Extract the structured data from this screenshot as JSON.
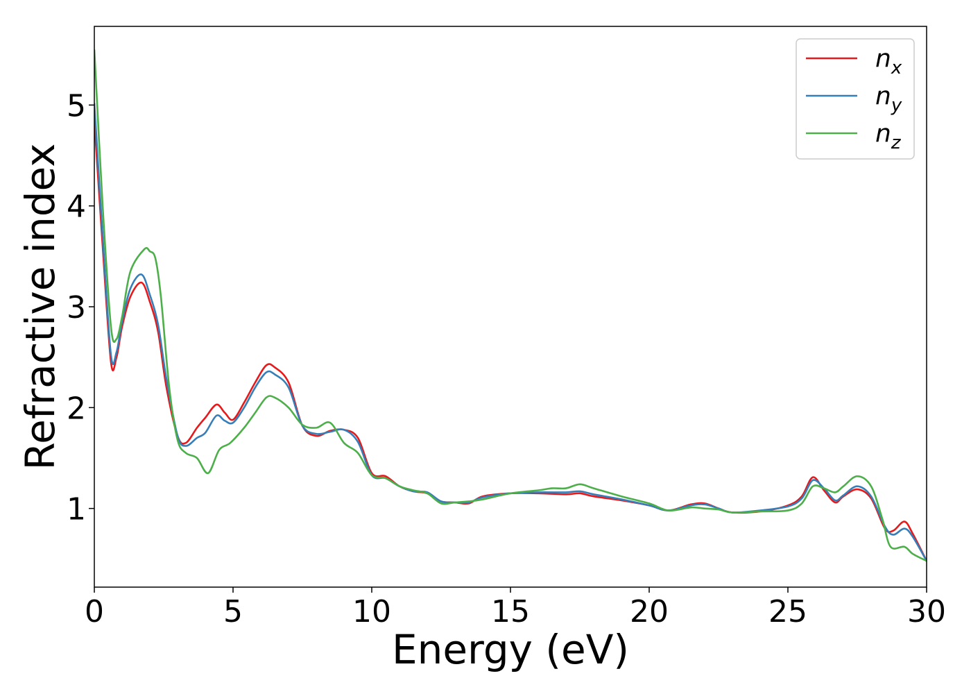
{
  "chart_data": {
    "type": "line",
    "xlabel": "Energy (eV)",
    "ylabel": "Refractive index",
    "xlim": [
      0,
      30
    ],
    "ylim": [
      0.22,
      5.78
    ],
    "xticks": [
      0,
      5,
      10,
      15,
      20,
      25,
      30
    ],
    "yticks": [
      1,
      2,
      3,
      4,
      5
    ],
    "grid": false,
    "legend_position": "top-right",
    "series": [
      {
        "name": "n_x",
        "label_base": "n",
        "label_sub": "x",
        "color": "#e41a1c",
        "x": [
          0,
          0.3,
          0.6,
          0.8,
          1.0,
          1.3,
          1.7,
          2.0,
          2.3,
          2.6,
          3.0,
          3.3,
          3.7,
          4.0,
          4.4,
          4.7,
          5.0,
          5.4,
          5.8,
          6.2,
          6.5,
          7.0,
          7.5,
          8.0,
          8.5,
          9.0,
          9.5,
          10.0,
          10.5,
          11.0,
          11.5,
          12.0,
          12.5,
          13.0,
          13.5,
          14.0,
          15.0,
          16.0,
          17.0,
          17.5,
          18.0,
          19.0,
          20.0,
          20.7,
          21.5,
          22.0,
          22.5,
          23.0,
          24.0,
          25.0,
          25.5,
          25.9,
          26.3,
          26.7,
          27.0,
          27.5,
          28.0,
          28.5,
          28.8,
          29.2,
          29.5,
          30.0
        ],
        "y": [
          4.85,
          3.6,
          2.45,
          2.5,
          2.8,
          3.1,
          3.24,
          3.05,
          2.75,
          2.2,
          1.72,
          1.65,
          1.8,
          1.9,
          2.03,
          1.95,
          1.88,
          2.05,
          2.25,
          2.42,
          2.4,
          2.25,
          1.82,
          1.72,
          1.77,
          1.78,
          1.7,
          1.35,
          1.32,
          1.22,
          1.17,
          1.15,
          1.07,
          1.06,
          1.05,
          1.12,
          1.15,
          1.15,
          1.14,
          1.15,
          1.12,
          1.08,
          1.03,
          0.98,
          1.04,
          1.05,
          1.0,
          0.96,
          0.97,
          1.03,
          1.12,
          1.31,
          1.18,
          1.06,
          1.12,
          1.19,
          1.1,
          0.8,
          0.78,
          0.87,
          0.75,
          0.48
        ]
      },
      {
        "name": "n_y",
        "label_base": "n",
        "label_sub": "y",
        "color": "#377eb8",
        "x": [
          0,
          0.3,
          0.6,
          0.8,
          1.0,
          1.3,
          1.7,
          2.0,
          2.3,
          2.6,
          3.0,
          3.3,
          3.7,
          4.0,
          4.4,
          4.7,
          5.0,
          5.4,
          5.8,
          6.2,
          6.5,
          7.0,
          7.5,
          8.0,
          8.5,
          9.0,
          9.5,
          10.0,
          10.5,
          11.0,
          11.5,
          12.0,
          12.5,
          13.0,
          13.5,
          14.0,
          15.0,
          16.0,
          17.0,
          17.5,
          18.0,
          19.0,
          20.0,
          20.7,
          21.5,
          22.0,
          22.5,
          23.0,
          24.0,
          25.0,
          25.5,
          25.9,
          26.3,
          26.7,
          27.0,
          27.5,
          28.0,
          28.5,
          28.8,
          29.2,
          29.5,
          30.0
        ],
        "y": [
          5.02,
          3.7,
          2.52,
          2.55,
          2.85,
          3.18,
          3.32,
          3.12,
          2.82,
          2.28,
          1.72,
          1.62,
          1.7,
          1.75,
          1.92,
          1.87,
          1.85,
          2.0,
          2.2,
          2.35,
          2.33,
          2.2,
          1.82,
          1.74,
          1.76,
          1.78,
          1.66,
          1.33,
          1.3,
          1.22,
          1.17,
          1.16,
          1.07,
          1.06,
          1.06,
          1.11,
          1.15,
          1.16,
          1.16,
          1.17,
          1.14,
          1.09,
          1.03,
          0.98,
          1.03,
          1.04,
          1.0,
          0.96,
          0.98,
          1.02,
          1.1,
          1.28,
          1.2,
          1.08,
          1.13,
          1.22,
          1.12,
          0.82,
          0.74,
          0.8,
          0.72,
          0.48
        ]
      },
      {
        "name": "n_z",
        "label_base": "n",
        "label_sub": "z",
        "color": "#4daf4a",
        "x": [
          0,
          0.3,
          0.6,
          0.8,
          1.0,
          1.3,
          1.8,
          2.0,
          2.2,
          2.4,
          2.7,
          3.0,
          3.3,
          3.7,
          4.1,
          4.5,
          4.9,
          5.4,
          5.8,
          6.2,
          6.5,
          7.0,
          7.5,
          8.0,
          8.5,
          9.0,
          9.5,
          10.0,
          10.5,
          11.0,
          11.5,
          12.0,
          12.5,
          13.0,
          13.5,
          14.0,
          15.0,
          16.0,
          16.5,
          17.0,
          17.5,
          18.0,
          19.0,
          20.0,
          20.7,
          21.5,
          22.0,
          22.5,
          23.0,
          24.0,
          25.0,
          25.5,
          25.9,
          26.3,
          26.7,
          27.0,
          27.5,
          28.0,
          28.4,
          28.7,
          29.2,
          29.5,
          30.0
        ],
        "y": [
          5.55,
          4.0,
          2.8,
          2.68,
          2.9,
          3.35,
          3.57,
          3.55,
          3.48,
          3.1,
          2.2,
          1.68,
          1.55,
          1.5,
          1.35,
          1.58,
          1.65,
          1.8,
          1.95,
          2.1,
          2.1,
          2.0,
          1.83,
          1.8,
          1.85,
          1.65,
          1.55,
          1.33,
          1.3,
          1.22,
          1.18,
          1.15,
          1.05,
          1.06,
          1.07,
          1.09,
          1.15,
          1.18,
          1.2,
          1.2,
          1.24,
          1.2,
          1.12,
          1.05,
          0.98,
          1.01,
          1.0,
          0.99,
          0.96,
          0.97,
          0.98,
          1.05,
          1.22,
          1.2,
          1.16,
          1.22,
          1.32,
          1.22,
          0.9,
          0.62,
          0.62,
          0.55,
          0.48
        ]
      }
    ]
  }
}
